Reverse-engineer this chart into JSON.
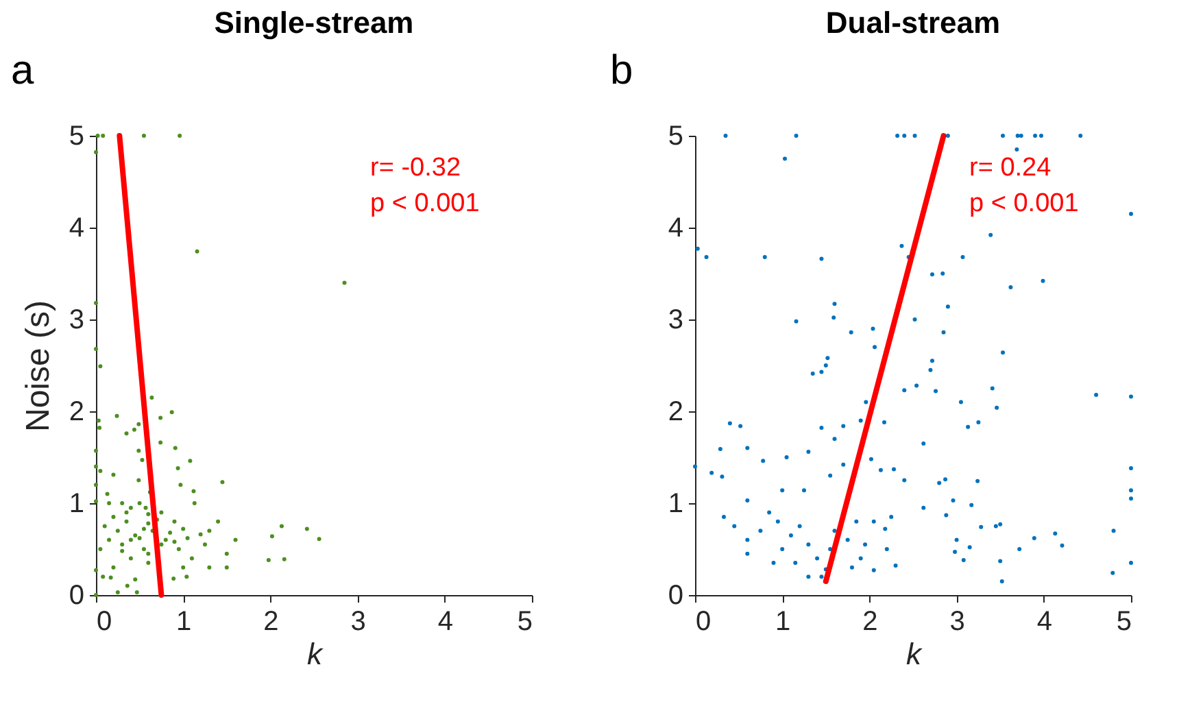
{
  "chart_data": [
    {
      "type": "scatter",
      "title": "Single-stream",
      "xlabel": "k",
      "ylabel": "Noise (s)",
      "xlim": [
        0,
        5
      ],
      "ylim": [
        0,
        5
      ],
      "xticks": [
        0,
        1,
        2,
        3,
        4,
        5
      ],
      "yticks": [
        0,
        1,
        2,
        3,
        4,
        5
      ],
      "grid": false,
      "annotations": [
        "a",
        "r= -0.32\np < 0.001"
      ],
      "series": [
        {
          "color": "#4d8f1f",
          "x": [
            0.02,
            0.08,
            0.55,
            0.96,
            0.0,
            1.16,
            2.85,
            0.0,
            0.0,
            0.05,
            0.64,
            0.24,
            0.74,
            0.87,
            0.03,
            0.04,
            0.35,
            0.44,
            0.49,
            0.74,
            0.49,
            0.0,
            0.91,
            0.53,
            0.94,
            1.08,
            0.0,
            0.05,
            0.2,
            0.0,
            1.45,
            0.13,
            0.49,
            0.97,
            1.12,
            0.62,
            0.0,
            0.15,
            0.3,
            0.5,
            1.13,
            0.4,
            0.75,
            0.2,
            0.1,
            0.35,
            0.6,
            0.9,
            1.4,
            0.65,
            1.3,
            0.15,
            0.45,
            0.8,
            1.05,
            1.6,
            0.3,
            0.55,
            0.95,
            1.25,
            1.5,
            0.6,
            0.4,
            1.1,
            0.05,
            0.2,
            0.6,
            1.0,
            1.3,
            1.5,
            2.02,
            2.16,
            2.42,
            2.56,
            0.0,
            0.08,
            0.17,
            0.36,
            0.45,
            0.89,
            1.04,
            0.25,
            0.47,
            0.0,
            1.98,
            2.13,
            0.25,
            0.55,
            0.85,
            0.7,
            0.35,
            0.6,
            1.2,
            0.9,
            0.5,
            0.3,
            0.75,
            1.0,
            0.57,
            0.4
          ],
          "values": [
            5,
            5,
            5,
            5,
            4.82,
            3.74,
            3.4,
            3.18,
            2.68,
            2.49,
            2.15,
            1.95,
            1.93,
            1.99,
            1.9,
            1.82,
            1.76,
            1.8,
            1.86,
            1.66,
            1.57,
            1.57,
            1.6,
            1.47,
            1.38,
            1.46,
            1.4,
            1.35,
            1.31,
            1.2,
            1.23,
            1.1,
            1.25,
            1.2,
            1.13,
            1.12,
            1.02,
            1.0,
            1.0,
            1.0,
            1.0,
            0.95,
            0.9,
            0.85,
            0.75,
            0.8,
            0.78,
            0.8,
            0.8,
            0.7,
            0.7,
            0.6,
            0.65,
            0.6,
            0.62,
            0.6,
            0.55,
            0.5,
            0.5,
            0.55,
            0.45,
            0.45,
            0.4,
            0.4,
            0.5,
            0.3,
            0.35,
            0.3,
            0.3,
            0.3,
            0.64,
            0.39,
            0.72,
            0.61,
            0.27,
            0.2,
            0.19,
            0.1,
            0.17,
            0.18,
            0.2,
            0.03,
            0.03,
            0.0,
            0.38,
            0.75,
            0.7,
            0.72,
            0.68,
            0.82,
            0.9,
            0.88,
            0.66,
            0.58,
            0.62,
            0.48,
            0.55,
            0.72,
            0.95,
            0.6
          ]
        },
        {
          "type": "line",
          "color": "#ff0000",
          "x": [
            0.27,
            0.75
          ],
          "values": [
            5,
            0
          ]
        }
      ]
    },
    {
      "type": "scatter",
      "title": "Dual-stream",
      "xlabel": "k",
      "xlim": [
        0,
        5
      ],
      "ylim": [
        0,
        5
      ],
      "xticks": [
        0,
        1,
        2,
        3,
        4,
        5
      ],
      "yticks": [
        0,
        1,
        2,
        3,
        4,
        5
      ],
      "grid": false,
      "annotations": [
        "b",
        "r= 0.24\np < 0.001"
      ],
      "series": [
        {
          "color": "#0072bd",
          "x": [
            0.35,
            1.16,
            2.32,
            2.4,
            2.52,
            2.86,
            2.9,
            3.53,
            3.7,
            3.74,
            3.9,
            3.97,
            4.42,
            3.69,
            1.03,
            5.0,
            0.03,
            0.13,
            0.8,
            2.37,
            2.45,
            1.45,
            3.07,
            3.39,
            2.72,
            2.84,
            3.62,
            3.99,
            1.16,
            1.6,
            1.59,
            2.9,
            2.52,
            1.79,
            2.04,
            2.06,
            2.85,
            1.52,
            1.5,
            1.45,
            1.35,
            2.4,
            2.54,
            2.72,
            2.7,
            2.76,
            3.53,
            3.41,
            3.46,
            4.6,
            5.0,
            3.05,
            3.13,
            3.25,
            2.62,
            0.4,
            0.52,
            0.6,
            0.29,
            0.31,
            0.19,
            0.0,
            1.05,
            1.3,
            1.45,
            1.6,
            1.7,
            1.9,
            1.96,
            2.17,
            0.78,
            1.0,
            1.25,
            1.55,
            1.7,
            2.02,
            2.13,
            2.28,
            2.4,
            2.8,
            2.87,
            3.24,
            3.17,
            3.28,
            2.62,
            2.96,
            2.88,
            5.0,
            5.0,
            5.0,
            0.6,
            0.33,
            0.45,
            0.6,
            0.75,
            0.85,
            0.95,
            1.1,
            1.2,
            1.3,
            1.4,
            1.55,
            1.6,
            1.75,
            1.85,
            1.95,
            2.05,
            2.2,
            2.25,
            1.8,
            1.9,
            2.05,
            1.45,
            1.5,
            1.3,
            0.6,
            0.9,
            1.0,
            1.15,
            2.3,
            2.18,
            3.0,
            3.08,
            3.15,
            3.45,
            3.5,
            3.5,
            3.52,
            3.72,
            3.89,
            4.13,
            4.21,
            4.8,
            4.79,
            5.0,
            2.98
          ],
          "values": [
            5,
            5,
            5,
            5,
            5,
            5,
            5,
            5,
            5,
            5,
            5,
            5,
            5,
            4.85,
            4.75,
            4.15,
            3.77,
            3.68,
            3.68,
            3.8,
            3.68,
            3.66,
            3.68,
            3.92,
            3.49,
            3.5,
            3.35,
            3.42,
            2.98,
            3.17,
            3.02,
            3.14,
            3.0,
            2.86,
            2.9,
            2.7,
            2.86,
            2.58,
            2.5,
            2.43,
            2.41,
            2.23,
            2.28,
            2.55,
            2.45,
            2.22,
            2.64,
            2.25,
            2.04,
            2.18,
            2.16,
            2.1,
            1.83,
            1.88,
            1.65,
            1.87,
            1.84,
            1.6,
            1.59,
            1.29,
            1.33,
            1.4,
            1.5,
            1.56,
            1.82,
            1.7,
            1.84,
            1.9,
            2.1,
            1.88,
            1.46,
            1.14,
            1.14,
            1.3,
            1.42,
            1.48,
            1.36,
            1.37,
            1.25,
            1.22,
            1.26,
            1.24,
            0.98,
            0.74,
            0.95,
            1.03,
            0.87,
            1.38,
            1.14,
            1.05,
            1.03,
            0.85,
            0.75,
            0.6,
            0.7,
            0.9,
            0.8,
            0.65,
            0.75,
            0.55,
            0.4,
            0.5,
            0.7,
            0.6,
            0.8,
            0.55,
            0.8,
            0.5,
            0.85,
            0.3,
            0.4,
            0.27,
            0.2,
            0.28,
            0.2,
            0.45,
            0.35,
            0.5,
            0.35,
            0.32,
            0.72,
            0.6,
            0.38,
            0.52,
            0.75,
            0.77,
            0.37,
            0.15,
            0.5,
            0.62,
            0.67,
            0.54,
            0.7,
            0.24,
            0.35,
            0.47
          ]
        },
        {
          "type": "line",
          "color": "#ff0000",
          "x": [
            1.5,
            2.85
          ],
          "values": [
            0.15,
            5
          ]
        }
      ]
    }
  ]
}
